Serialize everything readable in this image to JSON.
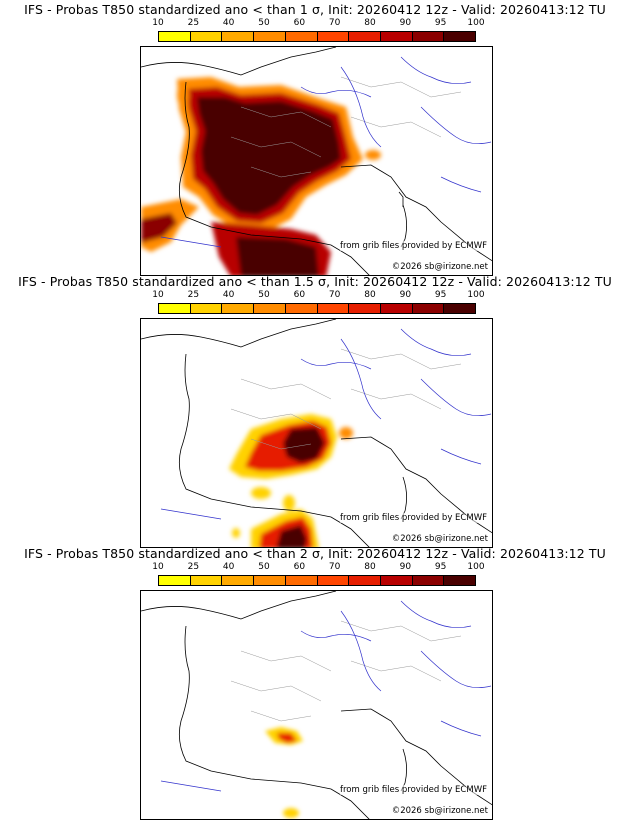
{
  "colorbar": {
    "ticks": [
      "10",
      "25",
      "40",
      "50",
      "60",
      "70",
      "80",
      "90",
      "95",
      "100"
    ],
    "colors": [
      "#ffff00",
      "#ffd200",
      "#ffaa00",
      "#ff8c00",
      "#ff6a00",
      "#ff4500",
      "#e61e00",
      "#b80000",
      "#8b0000",
      "#4a0000"
    ]
  },
  "credits": {
    "source": "from grib files provided by ECMWF",
    "copyright": "©2026 sb@irizone.net"
  },
  "panels": [
    {
      "title": "IFS - Probas T850  standardized ano < than 1 σ, Init: 20260412 12z - Valid: 20260413:12 TU",
      "threshold_sigma": 1
    },
    {
      "title": "IFS - Probas T850  standardized ano < than 1.5 σ, Init: 20260412 12z - Valid: 20260413:12 TU",
      "threshold_sigma": 1.5
    },
    {
      "title": "IFS - Probas T850  standardized ano < than 2 σ, Init: 20260412 12z - Valid: 20260413:12 TU",
      "threshold_sigma": 2
    }
  ]
}
